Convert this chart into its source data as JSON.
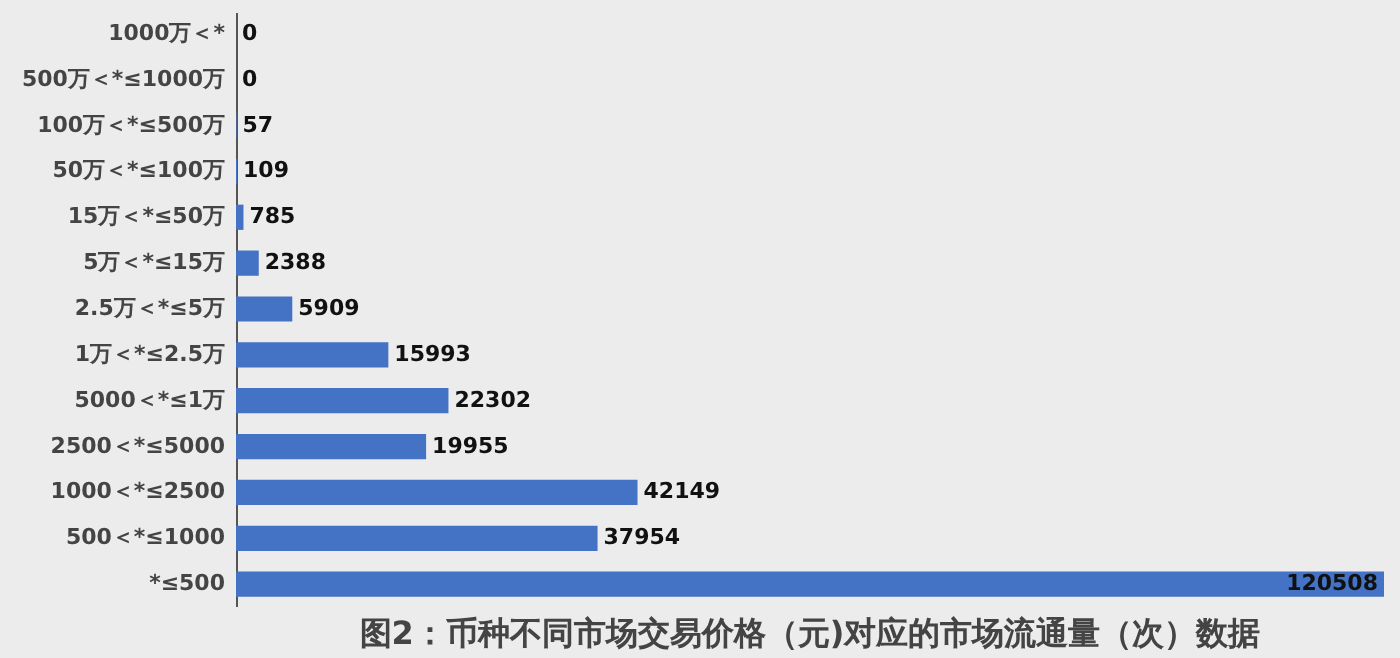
{
  "chart_data": {
    "type": "bar",
    "orientation": "horizontal",
    "title": "图2：币种不同市场交易价格（元)对应的市场流通量（次）数据",
    "categories": [
      "1000万＜*",
      "500万＜*≤1000万",
      "100万＜*≤500万",
      "50万＜*≤100万",
      "15万＜*≤50万",
      "5万＜*≤15万",
      "2.5万＜*≤5万",
      "1万＜*≤2.5万",
      "5000＜*≤1万",
      "2500＜*≤5000",
      "1000＜*≤2500",
      "500＜*≤1000",
      "*≤500"
    ],
    "values": [
      0,
      0,
      57,
      109,
      785,
      2388,
      5909,
      15993,
      22302,
      19955,
      42149,
      37954,
      120508
    ],
    "color": "#4472c4",
    "data_labels": true,
    "tick_labels": "y"
  }
}
